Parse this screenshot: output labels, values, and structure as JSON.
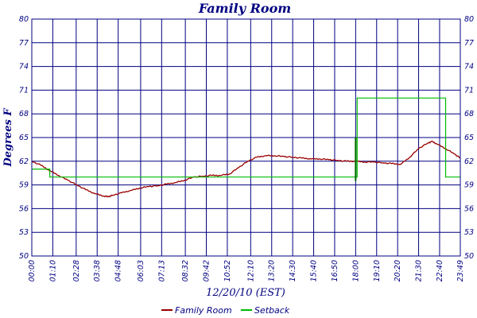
{
  "colors": {
    "background": "#ffffff",
    "grid": "#000080",
    "text": "#000080",
    "family_room": "#990000",
    "setback": "#00bb00",
    "marker": "#006600"
  },
  "chart_data": {
    "type": "line",
    "title": "Family Room",
    "xlabel": "12/20/10 (EST)",
    "ylabel": "Degrees F",
    "ylim": [
      50,
      80
    ],
    "y_ticks": [
      50,
      53,
      56,
      59,
      62,
      65,
      68,
      71,
      74,
      77,
      80
    ],
    "y_ticks_right": true,
    "xlim_minutes": [
      0,
      1429
    ],
    "x_ticks": [
      "00:00",
      "01:10",
      "02:28",
      "03:38",
      "04:48",
      "06:03",
      "07:13",
      "08:32",
      "09:42",
      "10:52",
      "12:10",
      "13:20",
      "14:30",
      "15:40",
      "16:50",
      "18:00",
      "19:10",
      "20:20",
      "21:30",
      "22:40",
      "23:49"
    ],
    "grid": true,
    "legend_position": "bottom-center",
    "series": [
      {
        "name": "Family Room",
        "x": [
          "00:00",
          "00:30",
          "01:00",
          "01:30",
          "02:00",
          "02:30",
          "03:00",
          "03:30",
          "04:00",
          "04:15",
          "04:30",
          "05:00",
          "05:30",
          "06:00",
          "06:30",
          "07:00",
          "07:30",
          "08:00",
          "08:30",
          "09:00",
          "09:30",
          "10:00",
          "10:30",
          "11:00",
          "11:30",
          "12:00",
          "12:30",
          "13:00",
          "13:30",
          "14:00",
          "14:30",
          "15:00",
          "15:30",
          "16:00",
          "16:30",
          "17:00",
          "17:30",
          "18:00",
          "18:30",
          "19:00",
          "19:30",
          "20:00",
          "20:30",
          "21:00",
          "21:30",
          "22:00",
          "22:15",
          "22:30",
          "23:00",
          "23:30",
          "23:49"
        ],
        "values": [
          62.0,
          61.5,
          60.8,
          60.2,
          59.6,
          59.0,
          58.4,
          57.9,
          57.6,
          57.5,
          57.7,
          58.0,
          58.3,
          58.6,
          58.8,
          58.9,
          59.1,
          59.3,
          59.6,
          60.0,
          60.1,
          60.2,
          60.2,
          60.4,
          61.2,
          62.0,
          62.5,
          62.7,
          62.7,
          62.6,
          62.5,
          62.4,
          62.3,
          62.3,
          62.2,
          62.1,
          62.0,
          62.0,
          61.9,
          61.9,
          61.8,
          61.7,
          61.6,
          62.5,
          63.6,
          64.3,
          64.5,
          64.2,
          63.6,
          62.9,
          62.4
        ]
      },
      {
        "name": "Setback",
        "x": [
          "00:00",
          "01:00",
          "18:00",
          "18:05",
          "22:50",
          "23:00",
          "23:49"
        ],
        "values": [
          61.0,
          60.0,
          60.0,
          70.0,
          70.0,
          60.0,
          60.0
        ],
        "step": true
      }
    ]
  }
}
